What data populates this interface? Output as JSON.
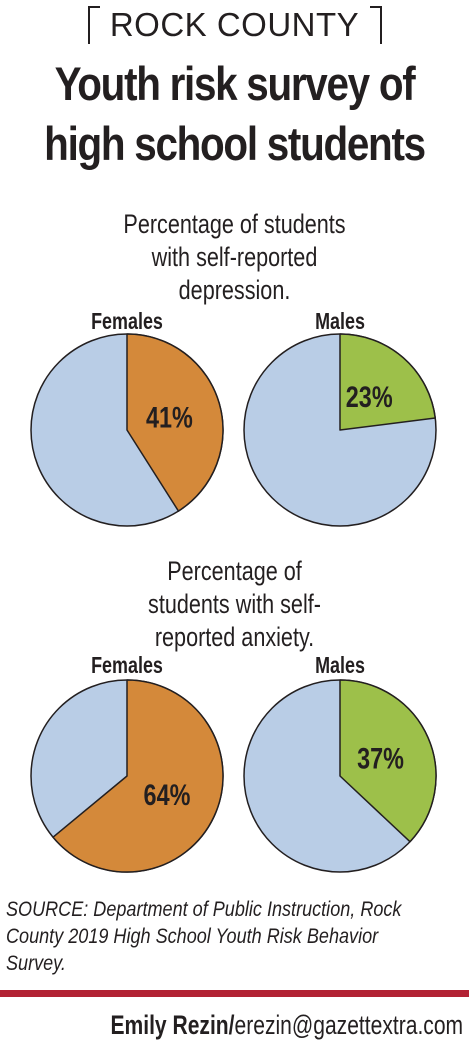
{
  "kicker": "ROCK COUNTY",
  "title": "Youth risk survey of high school students",
  "source": "SOURCE: Department of Public Instruction, Rock County 2019 High School Youth Risk Behavior Survey.",
  "credit": {
    "name": "Emily Rezin/",
    "email": "erezin@gazettextra.com"
  },
  "colors": {
    "accent_red": "#b22234",
    "female": "#d4893a",
    "male": "#9dc04a",
    "remainder": "#b9cde6",
    "outline": "#231f20"
  },
  "chart_data": [
    {
      "type": "pie",
      "title": "Percentage of students with self-reported depression.",
      "series": [
        {
          "name": "Females",
          "value": 41,
          "label": "41%"
        },
        {
          "name": "Males",
          "value": 23,
          "label": "23%"
        }
      ]
    },
    {
      "type": "pie",
      "title": "Percentage of students with self-reported anxiety.",
      "series": [
        {
          "name": "Females",
          "value": 64,
          "label": "64%"
        },
        {
          "name": "Males",
          "value": 37,
          "label": "37%"
        }
      ]
    }
  ]
}
